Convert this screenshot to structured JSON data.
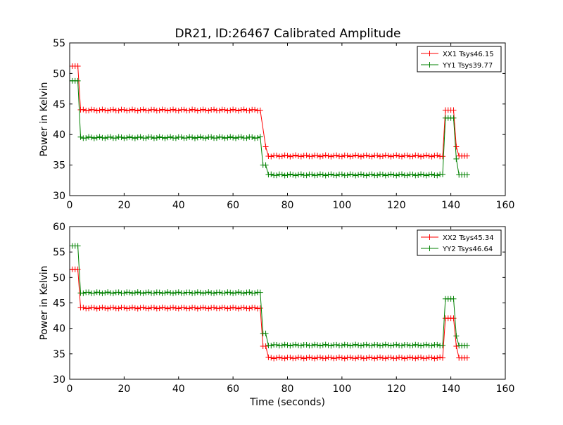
{
  "figure": {
    "title": "DR21, ID:26467 Calibrated Amplitude"
  },
  "chart_data": [
    {
      "type": "line",
      "title": "DR21, ID:26467 Calibrated Amplitude",
      "xlabel": "",
      "ylabel": "Power in Kelvin",
      "xlim": [
        0,
        160
      ],
      "ylim": [
        30,
        55
      ],
      "xticks": [
        0,
        20,
        40,
        60,
        80,
        100,
        120,
        140,
        160
      ],
      "yticks": [
        30,
        35,
        40,
        45,
        50,
        55
      ],
      "grid": false,
      "legend_position": "top-right",
      "marker": "plus",
      "series": [
        {
          "name": "XX1 Tsys46.15",
          "color": "#ff0000",
          "segments": [
            {
              "x_start": 0,
              "x_end": 3,
              "value": 51.2
            },
            {
              "x_start": 4,
              "x_end": 70,
              "value": 44.0
            },
            {
              "x_start": 72,
              "x_end": 72,
              "value": 38.0
            },
            {
              "x_start": 73,
              "x_end": 137,
              "value": 36.5
            },
            {
              "x_start": 138,
              "x_end": 141,
              "value": 44.0
            },
            {
              "x_start": 142,
              "x_end": 142,
              "value": 38.0
            },
            {
              "x_start": 143,
              "x_end": 146,
              "value": 36.5
            }
          ]
        },
        {
          "name": "YY1 Tsys39.77",
          "color": "#008000",
          "segments": [
            {
              "x_start": 0,
              "x_end": 3,
              "value": 48.8
            },
            {
              "x_start": 4,
              "x_end": 70,
              "value": 39.5
            },
            {
              "x_start": 71,
              "x_end": 72,
              "value": 35.0
            },
            {
              "x_start": 73,
              "x_end": 137,
              "value": 33.4
            },
            {
              "x_start": 138,
              "x_end": 141,
              "value": 42.7
            },
            {
              "x_start": 142,
              "x_end": 142,
              "value": 36.0
            },
            {
              "x_start": 143,
              "x_end": 146,
              "value": 33.4
            }
          ]
        }
      ]
    },
    {
      "type": "line",
      "title": "",
      "xlabel": "Time (seconds)",
      "ylabel": "Power in Kelvin",
      "xlim": [
        0,
        160
      ],
      "ylim": [
        30,
        60
      ],
      "xticks": [
        0,
        20,
        40,
        60,
        80,
        100,
        120,
        140,
        160
      ],
      "yticks": [
        30,
        35,
        40,
        45,
        50,
        55,
        60
      ],
      "grid": false,
      "legend_position": "top-right",
      "marker": "plus",
      "series": [
        {
          "name": "XX2 Tsys45.34",
          "color": "#ff0000",
          "segments": [
            {
              "x_start": 0,
              "x_end": 3,
              "value": 51.6
            },
            {
              "x_start": 4,
              "x_end": 70,
              "value": 44.0
            },
            {
              "x_start": 71,
              "x_end": 72,
              "value": 36.5
            },
            {
              "x_start": 73,
              "x_end": 137,
              "value": 34.2
            },
            {
              "x_start": 138,
              "x_end": 141,
              "value": 42.0
            },
            {
              "x_start": 142,
              "x_end": 142,
              "value": 36.5
            },
            {
              "x_start": 143,
              "x_end": 146,
              "value": 34.2
            }
          ]
        },
        {
          "name": "YY2 Tsys46.64",
          "color": "#008000",
          "segments": [
            {
              "x_start": 0,
              "x_end": 3,
              "value": 56.2
            },
            {
              "x_start": 4,
              "x_end": 70,
              "value": 47.0
            },
            {
              "x_start": 71,
              "x_end": 72,
              "value": 39.0
            },
            {
              "x_start": 73,
              "x_end": 137,
              "value": 36.7
            },
            {
              "x_start": 138,
              "x_end": 141,
              "value": 45.8
            },
            {
              "x_start": 142,
              "x_end": 142,
              "value": 38.5
            },
            {
              "x_start": 143,
              "x_end": 146,
              "value": 36.6
            }
          ]
        }
      ]
    }
  ]
}
